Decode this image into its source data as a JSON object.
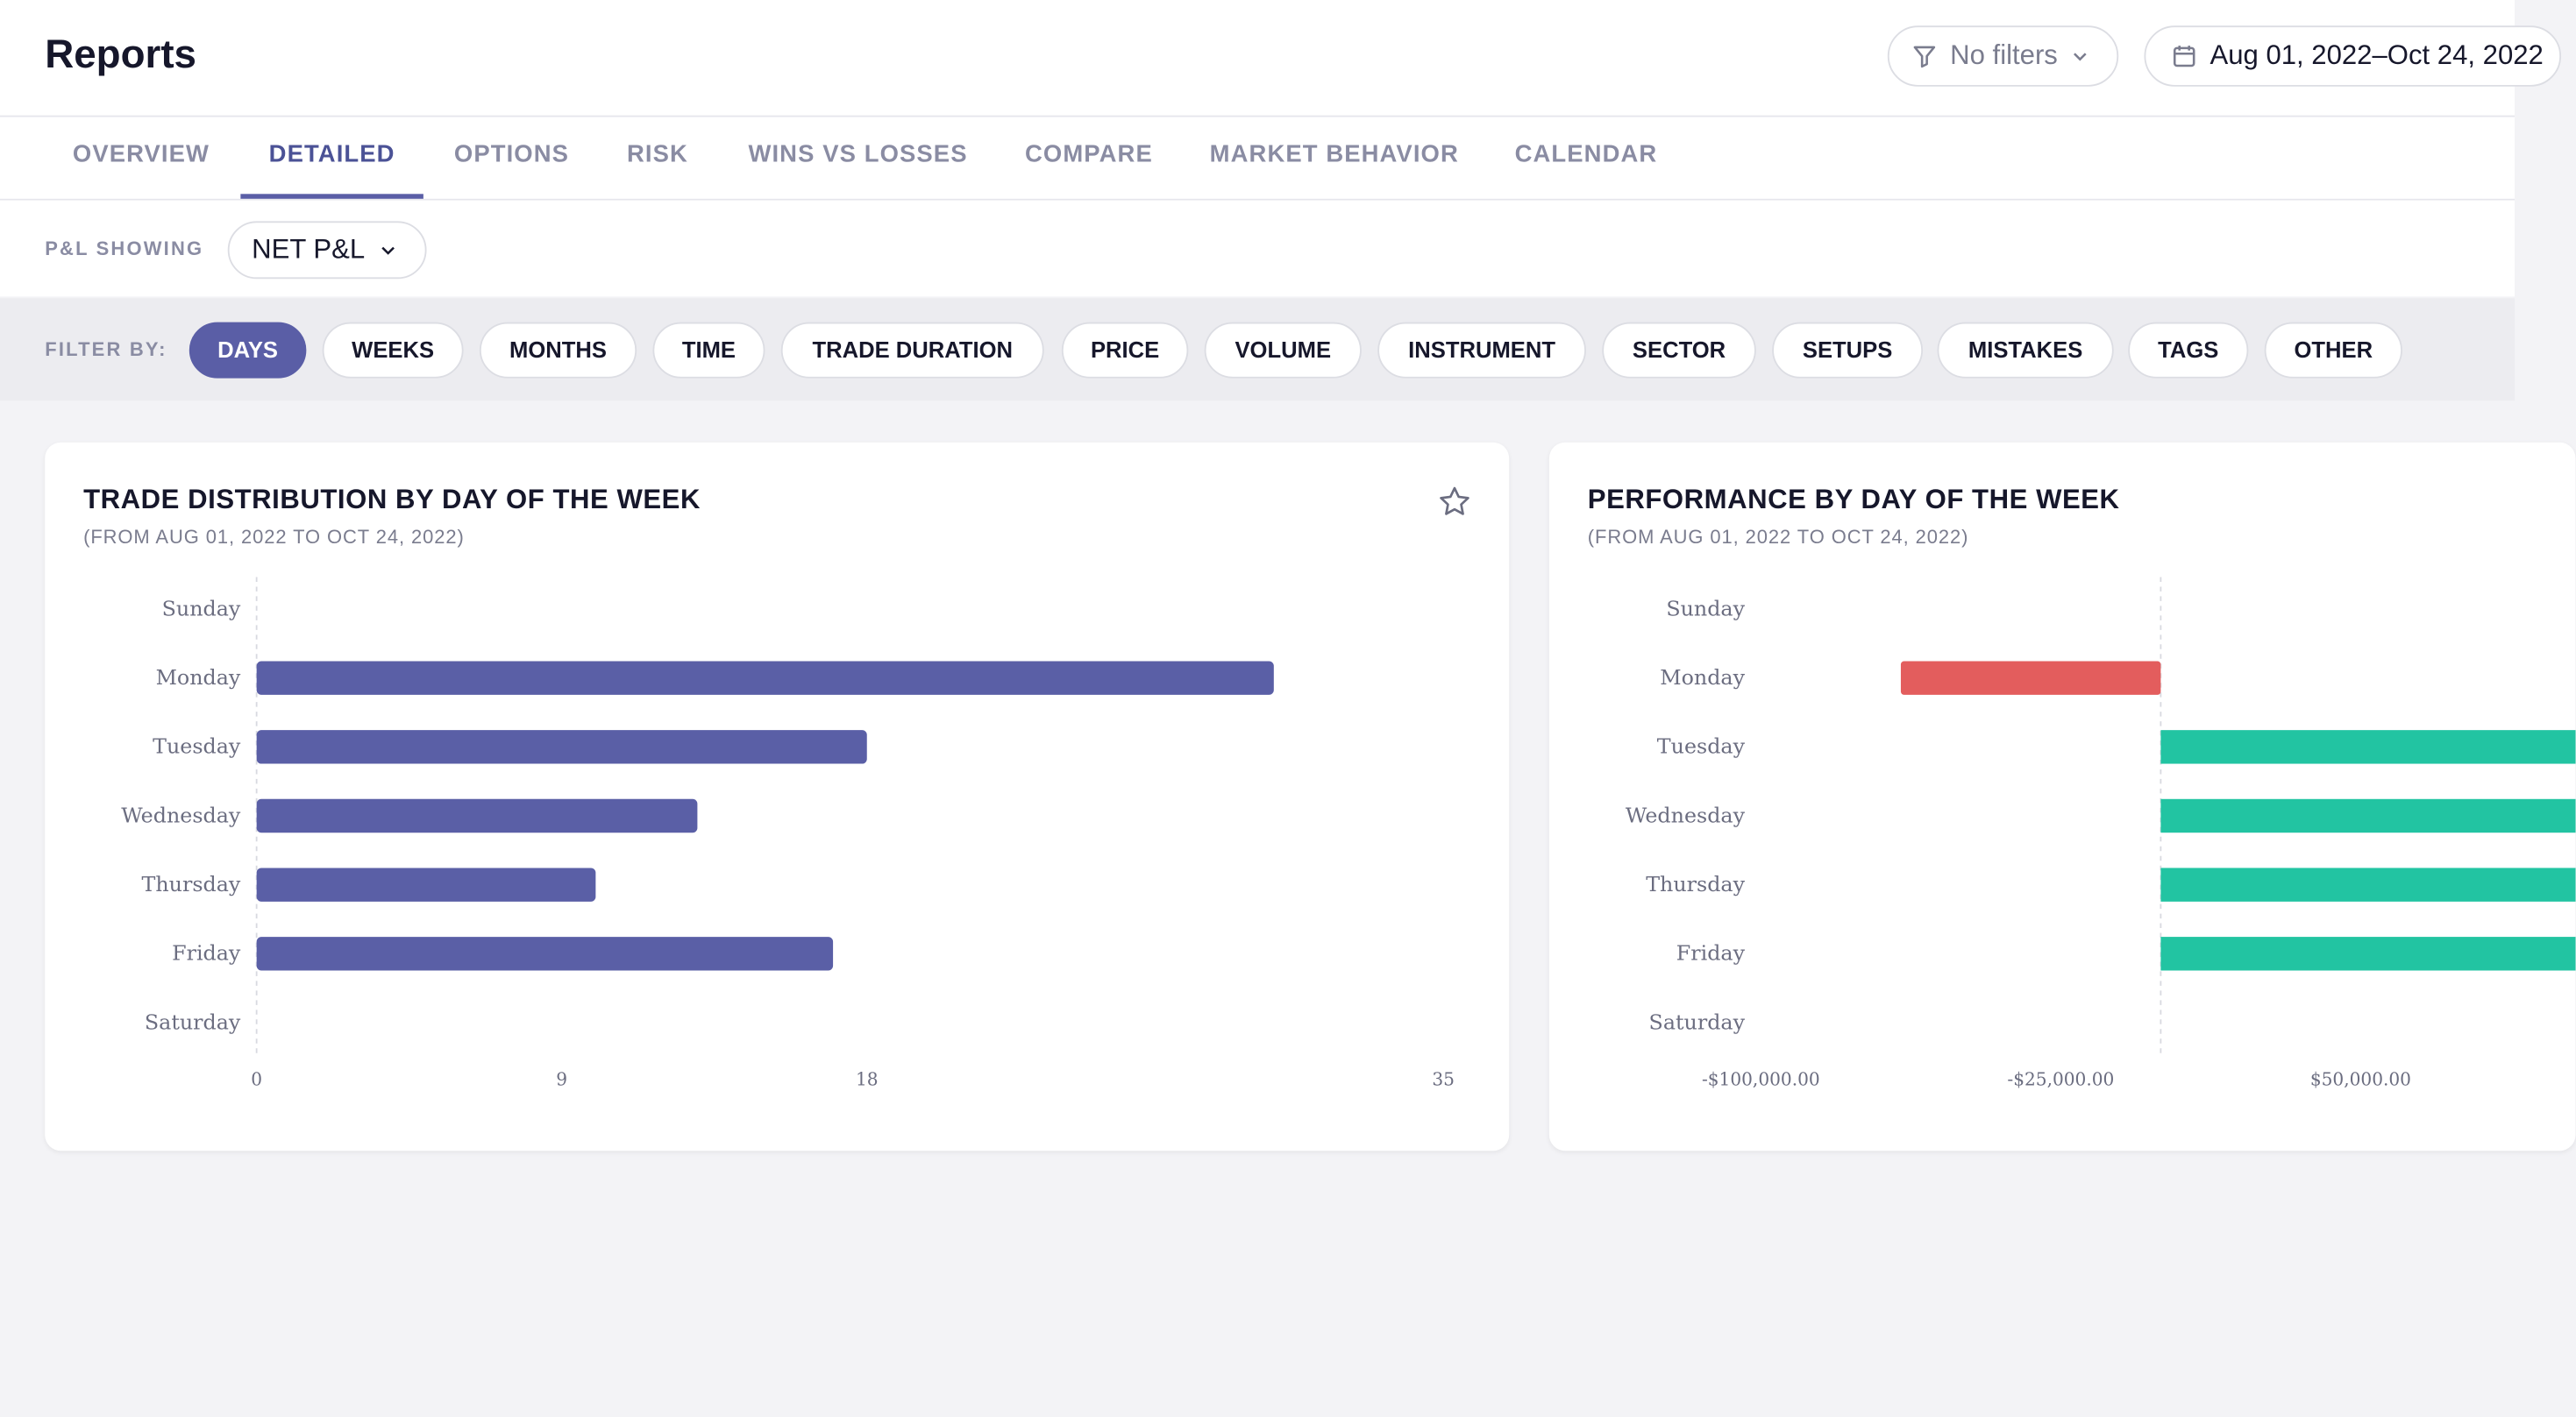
{
  "header": {
    "title": "Reports",
    "filters_label": "No filters",
    "date_range": "Aug 01, 2022–Oct 24, 2022"
  },
  "tabs": [
    {
      "label": "OVERVIEW"
    },
    {
      "label": "DETAILED",
      "active": true
    },
    {
      "label": "OPTIONS"
    },
    {
      "label": "RISK"
    },
    {
      "label": "WINS VS LOSSES"
    },
    {
      "label": "COMPARE"
    },
    {
      "label": "MARKET BEHAVIOR"
    },
    {
      "label": "CALENDAR"
    }
  ],
  "pl": {
    "label": "P&L SHOWING",
    "value": "NET P&L"
  },
  "filter_by": {
    "label": "FILTER BY:",
    "chips": [
      "DAYS",
      "WEEKS",
      "MONTHS",
      "TIME",
      "TRADE DURATION",
      "PRICE",
      "VOLUME",
      "INSTRUMENT",
      "SECTOR",
      "SETUPS",
      "MISTAKES",
      "TAGS",
      "OTHER"
    ],
    "active": "DAYS"
  },
  "colors": {
    "accent": "#5a5ea6",
    "bar": "#5a5fa6",
    "negative": "#e35d5d",
    "positive": "#22c4a2"
  },
  "cards": [
    {
      "title": "TRADE DISTRIBUTION BY DAY OF THE WEEK",
      "subtitle": "(FROM AUG 01, 2022 TO OCT 24, 2022)",
      "icon": "star-icon"
    },
    {
      "title": "PERFORMANCE BY DAY OF THE WEEK",
      "subtitle": "(FROM AUG 01, 2022 TO OCT 24, 2022)"
    }
  ],
  "chart_data": [
    {
      "type": "bar",
      "orientation": "horizontal",
      "categories": [
        "Sunday",
        "Monday",
        "Tuesday",
        "Wednesday",
        "Thursday",
        "Friday",
        "Saturday"
      ],
      "values": [
        0,
        30,
        18,
        13,
        10,
        17,
        0
      ],
      "xticks": [
        "0",
        "9",
        "18",
        "35"
      ],
      "xlim": [
        0,
        35
      ]
    },
    {
      "type": "bar",
      "orientation": "horizontal",
      "categories": [
        "Sunday",
        "Monday",
        "Tuesday",
        "Wednesday",
        "Thursday",
        "Friday",
        "Saturday"
      ],
      "values": [
        0,
        -65000,
        null,
        null,
        null,
        null,
        0
      ],
      "xticks": [
        "-$100,000.00",
        "-$25,000.00",
        "$50,000.00"
      ],
      "note_values_positive_exceed_visible_area": true
    }
  ]
}
